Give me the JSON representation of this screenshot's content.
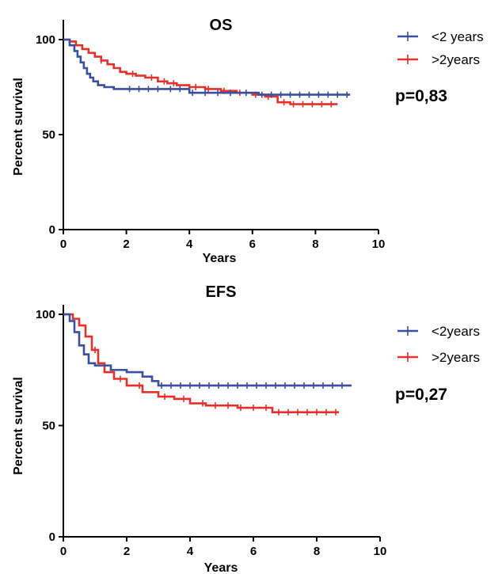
{
  "chart_data": [
    {
      "type": "line",
      "title": "OS",
      "xlabel": "Years",
      "ylabel": "Percent survival",
      "xlim": [
        0,
        10
      ],
      "ylim": [
        0,
        100
      ],
      "xticks": [
        0,
        2,
        4,
        6,
        8,
        10
      ],
      "yticks": [
        0,
        50,
        100
      ],
      "legend_position": "right",
      "annotation": "p=0,83",
      "series": [
        {
          "name": "<2 years",
          "color": "#3a4fa0",
          "x": [
            0,
            0.2,
            0.35,
            0.45,
            0.55,
            0.65,
            0.75,
            0.85,
            0.95,
            1.1,
            1.3,
            1.6,
            2.5,
            4.0,
            6.2,
            9.1
          ],
          "y": [
            100,
            97,
            94,
            91,
            88,
            85,
            82,
            80,
            78,
            76,
            75,
            74,
            74,
            72,
            71,
            71
          ],
          "censored_x": [
            2.1,
            2.4,
            2.7,
            3.0,
            3.4,
            3.7,
            4.1,
            4.5,
            4.9,
            5.3,
            5.8,
            6.3,
            6.6,
            6.9,
            7.2,
            7.5,
            7.8,
            8.1,
            8.4,
            8.7,
            9.0
          ]
        },
        {
          "name": ">2years",
          "color": "#e8302a",
          "x": [
            0,
            0.2,
            0.4,
            0.6,
            0.8,
            1.0,
            1.2,
            1.4,
            1.6,
            1.8,
            2.0,
            2.3,
            2.6,
            3.0,
            3.3,
            3.6,
            4.0,
            4.5,
            5.0,
            5.5,
            6.0,
            6.4,
            6.8,
            7.2,
            8.7
          ],
          "y": [
            100,
            99,
            97,
            95,
            93,
            91,
            89,
            87,
            85,
            83,
            82,
            81,
            80,
            78,
            77,
            76,
            75,
            74,
            73,
            72,
            71,
            70,
            67,
            66,
            66
          ],
          "censored_x": [
            1.2,
            2.2,
            2.8,
            3.2,
            3.5,
            4.2,
            4.6,
            5.1,
            5.6,
            6.1,
            6.5,
            7.0,
            7.3,
            7.6,
            7.9,
            8.2,
            8.5
          ]
        }
      ]
    },
    {
      "type": "line",
      "title": "EFS",
      "xlabel": "Years",
      "ylabel": "Percent survival",
      "xlim": [
        0,
        10
      ],
      "ylim": [
        0,
        100
      ],
      "xticks": [
        0,
        2,
        4,
        6,
        8,
        10
      ],
      "yticks": [
        0,
        50,
        100
      ],
      "legend_position": "right",
      "annotation": "p=0,27",
      "series": [
        {
          "name": "<2years",
          "color": "#3a4fa0",
          "x": [
            0,
            0.2,
            0.35,
            0.5,
            0.65,
            0.8,
            1.0,
            1.5,
            2.0,
            2.5,
            2.8,
            3.0,
            9.1
          ],
          "y": [
            100,
            97,
            92,
            86,
            82,
            78,
            77,
            75,
            74,
            72,
            70,
            68,
            68
          ],
          "censored_x": [
            3.1,
            3.4,
            3.7,
            4.0,
            4.3,
            4.6,
            4.9,
            5.2,
            5.5,
            5.8,
            6.1,
            6.4,
            6.7,
            7.0,
            7.3,
            7.6,
            7.9,
            8.2,
            8.5,
            8.8
          ]
        },
        {
          "name": ">2years",
          "color": "#e8302a",
          "x": [
            0,
            0.3,
            0.5,
            0.7,
            0.9,
            1.1,
            1.3,
            1.6,
            2.0,
            2.5,
            3.0,
            3.5,
            4.0,
            4.5,
            5.0,
            5.5,
            6.0,
            6.6,
            8.7
          ],
          "y": [
            100,
            98,
            95,
            90,
            84,
            78,
            74,
            71,
            68,
            65,
            63,
            62,
            60,
            59,
            59,
            58,
            58,
            56,
            56
          ],
          "censored_x": [
            1.0,
            1.8,
            2.4,
            3.2,
            3.8,
            4.4,
            4.8,
            5.2,
            5.6,
            6.0,
            6.4,
            6.8,
            7.1,
            7.4,
            7.7,
            8.0,
            8.3,
            8.6
          ]
        }
      ]
    }
  ]
}
